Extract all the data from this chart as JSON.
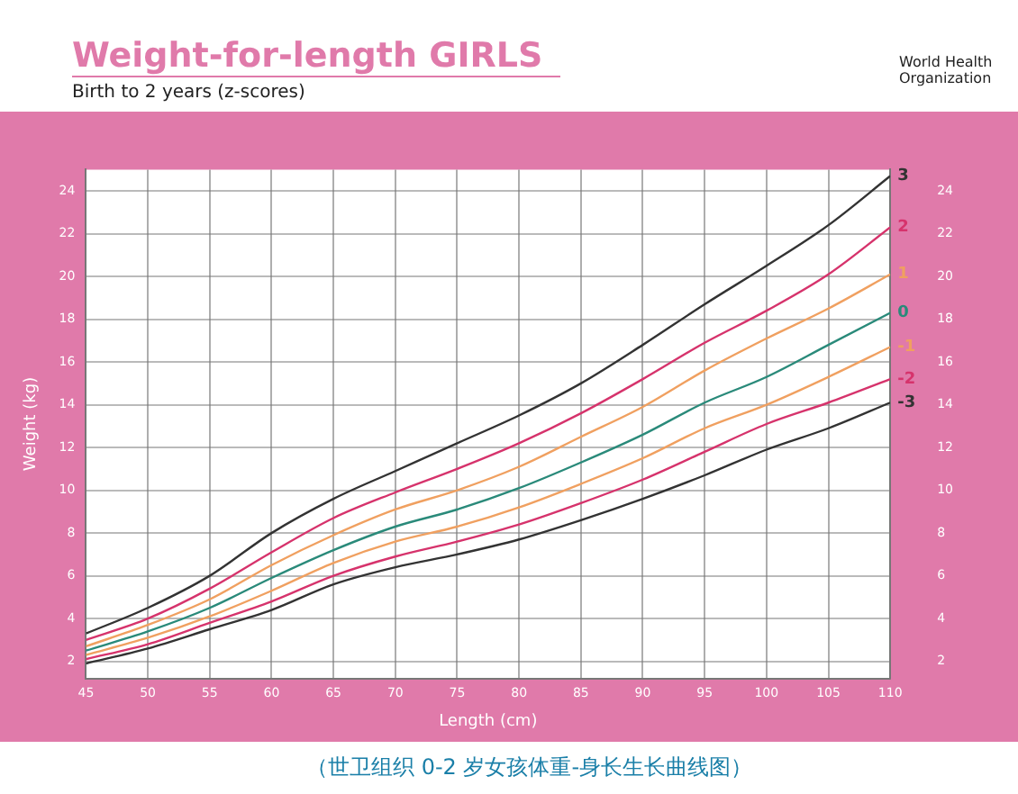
{
  "chart_data": {
    "type": "line",
    "title": "Weight-for-length GIRLS",
    "subtitle": "Birth to 2 years (z-scores)",
    "xlabel": "Length (cm)",
    "ylabel": "Weight (kg)",
    "annotations": [
      "World Health Organization",
      "（世卫组织 0-2 岁女孩体重-身长生长曲线图）"
    ],
    "x": [
      45,
      50,
      55,
      60,
      65,
      70,
      75,
      80,
      85,
      90,
      95,
      100,
      105,
      110
    ],
    "series": [
      {
        "name": "3",
        "color": "#333333",
        "values": [
          3.3,
          4.5,
          6.0,
          8.0,
          9.6,
          10.9,
          12.2,
          13.5,
          15.0,
          16.8,
          18.7,
          20.5,
          22.4,
          24.7
        ]
      },
      {
        "name": "2",
        "color": "#d6336c",
        "values": [
          3.0,
          4.0,
          5.4,
          7.1,
          8.7,
          9.9,
          11.0,
          12.2,
          13.6,
          15.2,
          16.9,
          18.4,
          20.1,
          22.3
        ]
      },
      {
        "name": "1",
        "color": "#f0a060",
        "values": [
          2.7,
          3.7,
          4.9,
          6.5,
          7.9,
          9.1,
          10.0,
          11.1,
          12.5,
          13.9,
          15.6,
          17.1,
          18.5,
          20.1
        ]
      },
      {
        "name": "0",
        "color": "#2a8a7a",
        "values": [
          2.5,
          3.4,
          4.5,
          5.9,
          7.2,
          8.3,
          9.1,
          10.1,
          11.3,
          12.6,
          14.1,
          15.3,
          16.8,
          18.3
        ]
      },
      {
        "name": "-1",
        "color": "#f0a060",
        "values": [
          2.3,
          3.1,
          4.1,
          5.3,
          6.6,
          7.6,
          8.3,
          9.2,
          10.3,
          11.5,
          12.9,
          14.0,
          15.3,
          16.7
        ]
      },
      {
        "name": "-2",
        "color": "#d6336c",
        "values": [
          2.1,
          2.8,
          3.8,
          4.8,
          6.0,
          6.9,
          7.6,
          8.4,
          9.4,
          10.5,
          11.8,
          13.1,
          14.1,
          15.2
        ]
      },
      {
        "name": "-3",
        "color": "#333333",
        "values": [
          1.9,
          2.6,
          3.5,
          4.4,
          5.6,
          6.4,
          7.0,
          7.7,
          8.6,
          9.6,
          10.7,
          11.9,
          12.9,
          14.1
        ]
      }
    ],
    "xlim": [
      45,
      110
    ],
    "xticks": [
      45,
      50,
      55,
      60,
      65,
      70,
      75,
      80,
      85,
      90,
      95,
      100,
      105,
      110
    ],
    "ylim": [
      1.2,
      25
    ],
    "yticks": [
      2,
      4,
      6,
      8,
      10,
      12,
      14,
      16,
      18,
      20,
      22,
      24
    ],
    "y2lim": [
      1.2,
      25
    ],
    "y2ticks": [
      2,
      4,
      6,
      8,
      10,
      12,
      14,
      16,
      18,
      20,
      22,
      24
    ],
    "grid": true,
    "legend": false,
    "marker": "none",
    "line_style": "solid"
  }
}
